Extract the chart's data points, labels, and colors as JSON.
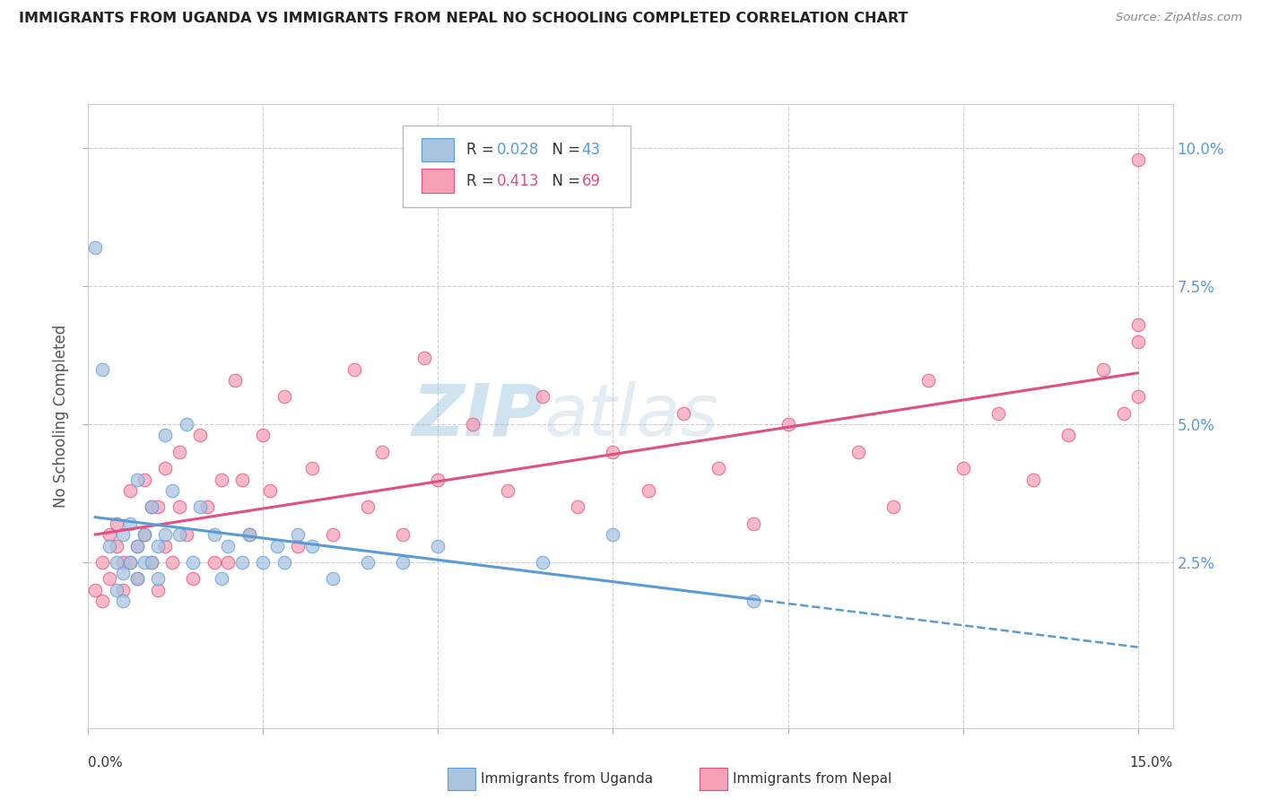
{
  "title": "IMMIGRANTS FROM UGANDA VS IMMIGRANTS FROM NEPAL NO SCHOOLING COMPLETED CORRELATION CHART",
  "source": "Source: ZipAtlas.com",
  "ylabel": "No Schooling Completed",
  "xlim": [
    0.0,
    0.155
  ],
  "ylim": [
    -0.005,
    0.108
  ],
  "ytick_vals": [
    0.025,
    0.05,
    0.075,
    0.1
  ],
  "ytick_labels": [
    "2.5%",
    "5.0%",
    "7.5%",
    "10.0%"
  ],
  "legend_r_uganda": "0.028",
  "legend_n_uganda": "43",
  "legend_r_nepal": "0.413",
  "legend_n_nepal": "69",
  "color_uganda": "#aac4e0",
  "color_nepal": "#f5a0b5",
  "trendline_color_uganda": "#5b9bd5",
  "trendline_color_nepal": "#e05080",
  "watermark_color": "#c8d8ea",
  "background_color": "#ffffff",
  "grid_color": "#cccccc",
  "title_color": "#222222",
  "source_color": "#888888",
  "label_color": "#555555",
  "axis_color": "#5b9bd5",
  "uganda_x": [
    0.001,
    0.002,
    0.003,
    0.004,
    0.004,
    0.005,
    0.005,
    0.005,
    0.006,
    0.006,
    0.007,
    0.007,
    0.007,
    0.008,
    0.008,
    0.009,
    0.009,
    0.01,
    0.01,
    0.011,
    0.011,
    0.012,
    0.013,
    0.014,
    0.015,
    0.016,
    0.018,
    0.019,
    0.02,
    0.022,
    0.023,
    0.025,
    0.027,
    0.028,
    0.03,
    0.032,
    0.035,
    0.04,
    0.045,
    0.05,
    0.065,
    0.075,
    0.095
  ],
  "uganda_y": [
    0.082,
    0.06,
    0.028,
    0.025,
    0.02,
    0.03,
    0.023,
    0.018,
    0.025,
    0.032,
    0.04,
    0.028,
    0.022,
    0.03,
    0.025,
    0.035,
    0.025,
    0.028,
    0.022,
    0.048,
    0.03,
    0.038,
    0.03,
    0.05,
    0.025,
    0.035,
    0.03,
    0.022,
    0.028,
    0.025,
    0.03,
    0.025,
    0.028,
    0.025,
    0.03,
    0.028,
    0.022,
    0.025,
    0.025,
    0.028,
    0.025,
    0.03,
    0.018
  ],
  "nepal_x": [
    0.001,
    0.002,
    0.002,
    0.003,
    0.003,
    0.004,
    0.004,
    0.005,
    0.005,
    0.006,
    0.006,
    0.007,
    0.007,
    0.008,
    0.008,
    0.009,
    0.009,
    0.01,
    0.01,
    0.011,
    0.011,
    0.012,
    0.013,
    0.013,
    0.014,
    0.015,
    0.016,
    0.017,
    0.018,
    0.019,
    0.02,
    0.021,
    0.022,
    0.023,
    0.025,
    0.026,
    0.028,
    0.03,
    0.032,
    0.035,
    0.038,
    0.04,
    0.042,
    0.045,
    0.048,
    0.05,
    0.055,
    0.06,
    0.065,
    0.07,
    0.075,
    0.08,
    0.085,
    0.09,
    0.095,
    0.1,
    0.11,
    0.115,
    0.12,
    0.125,
    0.13,
    0.135,
    0.14,
    0.145,
    0.148,
    0.15,
    0.15,
    0.15,
    0.15
  ],
  "nepal_y": [
    0.02,
    0.018,
    0.025,
    0.022,
    0.03,
    0.028,
    0.032,
    0.02,
    0.025,
    0.025,
    0.038,
    0.022,
    0.028,
    0.03,
    0.04,
    0.025,
    0.035,
    0.02,
    0.035,
    0.028,
    0.042,
    0.025,
    0.045,
    0.035,
    0.03,
    0.022,
    0.048,
    0.035,
    0.025,
    0.04,
    0.025,
    0.058,
    0.04,
    0.03,
    0.048,
    0.038,
    0.055,
    0.028,
    0.042,
    0.03,
    0.06,
    0.035,
    0.045,
    0.03,
    0.062,
    0.04,
    0.05,
    0.038,
    0.055,
    0.035,
    0.045,
    0.038,
    0.052,
    0.042,
    0.032,
    0.05,
    0.045,
    0.035,
    0.058,
    0.042,
    0.052,
    0.04,
    0.048,
    0.06,
    0.052,
    0.065,
    0.055,
    0.068,
    0.098
  ]
}
